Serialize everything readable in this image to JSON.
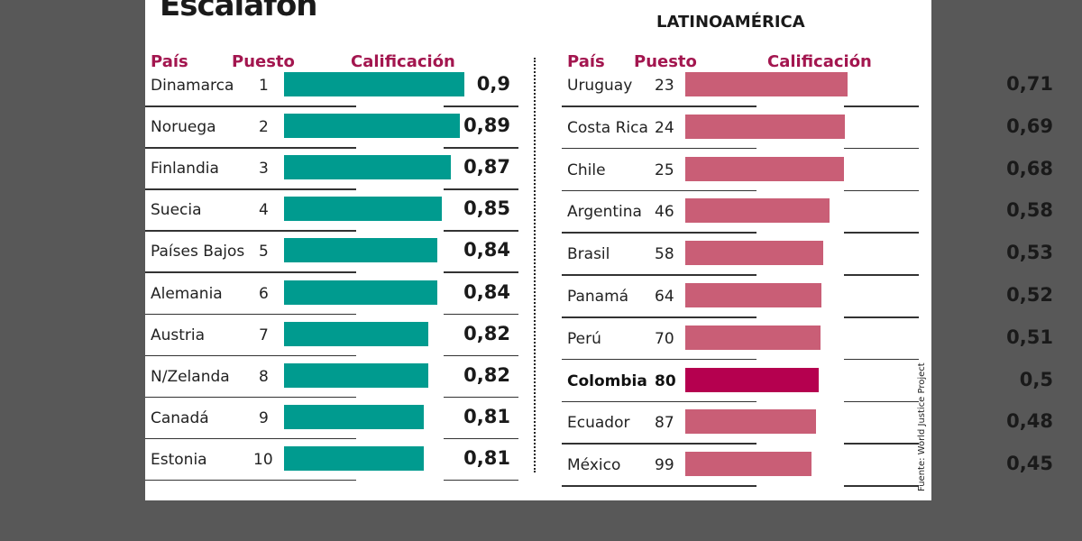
{
  "title": "Escalafón",
  "source": "Fuente: World Justice Project",
  "chart_data": [
    {
      "type": "bar",
      "title": "",
      "headers": {
        "country": "País",
        "rank": "Puesto",
        "score": "Calificación"
      },
      "color": "#009b8f",
      "categories": [
        "Dinamarca",
        "Noruega",
        "Finlandia",
        "Suecia",
        "Países Bajos",
        "Alemania",
        "Austria",
        "N/Zelanda",
        "Canadá",
        "Estonia"
      ],
      "ranks": [
        "1",
        "2",
        "3",
        "4",
        "5",
        "6",
        "7",
        "8",
        "9",
        "10"
      ],
      "values": [
        0.9,
        0.89,
        0.87,
        0.85,
        0.84,
        0.84,
        0.82,
        0.82,
        0.81,
        0.81
      ],
      "labels": [
        "0,9",
        "0,89",
        "0,87",
        "0,85",
        "0,84",
        "0,84",
        "0,82",
        "0,82",
        "0,81",
        "0,81"
      ]
    },
    {
      "type": "bar",
      "title": "LATINOAMÉRICA",
      "headers": {
        "country": "País",
        "rank": "Puesto",
        "score": "Calificación"
      },
      "color": "#c95e76",
      "highlight_color": "#b5004f",
      "highlight": "Colombia",
      "categories": [
        "Uruguay",
        "Costa Rica",
        "Chile",
        "Argentina",
        "Brasil",
        "Panamá",
        "Perú",
        "Colombia",
        "Ecuador",
        "México"
      ],
      "ranks": [
        "23",
        "24",
        "25",
        "46",
        "58",
        "64",
        "70",
        "80",
        "87",
        "99"
      ],
      "values": [
        0.71,
        0.69,
        0.68,
        0.58,
        0.53,
        0.52,
        0.51,
        0.5,
        0.48,
        0.45
      ],
      "labels": [
        "0,71",
        "0,69",
        "0,68",
        "0,58",
        "0,53",
        "0,52",
        "0,51",
        "0,5",
        "0,48",
        "0,45"
      ]
    }
  ]
}
